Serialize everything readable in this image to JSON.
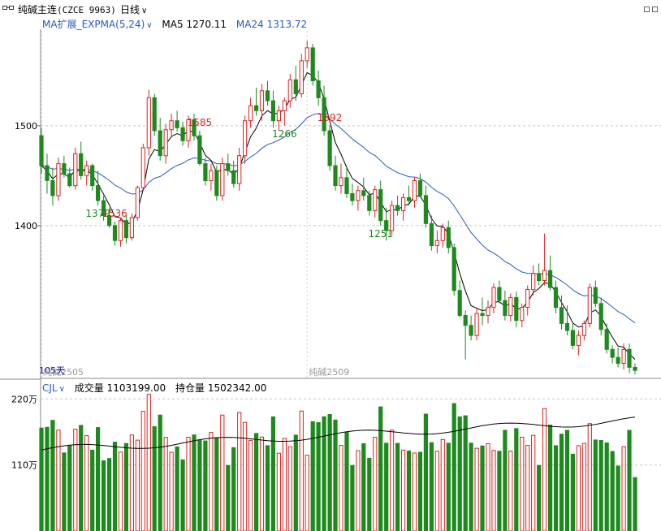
{
  "header": {
    "instrument": "纯碱主连",
    "code": "(CZCE 9963)",
    "period": "日线"
  },
  "main_legend": {
    "indicator": "MA扩展_EXPMA(5,24)",
    "ma5_label": "MA5",
    "ma5_value": "1270.11",
    "ma24_label": "MA24",
    "ma24_value": "1313.72"
  },
  "volume_legend": {
    "indicator": "CJL",
    "volume_label": "成交量",
    "volume_value": "1103199.00",
    "oi_label": "持仓量",
    "oi_value": "1502342.00"
  },
  "colors": {
    "up": "#dd2222",
    "down": "#1d8a1d",
    "ma5": "#000000",
    "ma24": "#2a57c7",
    "grid": "#c8c8c8",
    "open_interest": "#000000"
  },
  "chart_data": [
    {
      "type": "candlestick",
      "title": "纯碱主连(CZCE 9963)",
      "y_ticks": [
        "1500",
        "1400"
      ],
      "ylim": [
        1247,
        1595
      ],
      "annotations": [
        {
          "label": "1536",
          "bar": 13,
          "kind": "high"
        },
        {
          "label": "1585",
          "bar": 28,
          "kind": "high"
        },
        {
          "label": "1392",
          "bar": 51,
          "kind": "high"
        },
        {
          "label": "1379",
          "bar": 10,
          "kind": "low"
        },
        {
          "label": "1266",
          "bar": 43,
          "kind": "low"
        },
        {
          "label": "1251",
          "bar": 60,
          "kind": "low"
        }
      ],
      "contract_markers": [
        {
          "label": "纯碱2505",
          "bar": 0
        },
        {
          "label": "纯碱2509",
          "bar": 47
        }
      ],
      "bottom_label": "105天",
      "ohlc": [
        [
          1490,
          1498,
          1452,
          1460
        ],
        [
          1460,
          1472,
          1432,
          1445
        ],
        [
          1445,
          1458,
          1420,
          1430
        ],
        [
          1430,
          1468,
          1425,
          1462
        ],
        [
          1462,
          1470,
          1448,
          1452
        ],
        [
          1452,
          1458,
          1438,
          1440
        ],
        [
          1440,
          1478,
          1436,
          1472
        ],
        [
          1472,
          1484,
          1446,
          1450
        ],
        [
          1450,
          1465,
          1440,
          1460
        ],
        [
          1460,
          1462,
          1435,
          1440
        ],
        [
          1440,
          1455,
          1420,
          1425
        ],
        [
          1425,
          1430,
          1405,
          1410
        ],
        [
          1410,
          1418,
          1398,
          1400
        ],
        [
          1400,
          1404,
          1380,
          1385
        ],
        [
          1385,
          1408,
          1379,
          1405
        ],
        [
          1405,
          1410,
          1382,
          1388
        ],
        [
          1388,
          1412,
          1385,
          1408
        ],
        [
          1408,
          1440,
          1405,
          1438
        ],
        [
          1438,
          1482,
          1435,
          1478
        ],
        [
          1478,
          1536,
          1470,
          1528
        ],
        [
          1528,
          1532,
          1490,
          1495
        ],
        [
          1495,
          1508,
          1465,
          1470
        ],
        [
          1470,
          1502,
          1462,
          1496
        ],
        [
          1496,
          1512,
          1488,
          1505
        ],
        [
          1505,
          1515,
          1494,
          1498
        ],
        [
          1498,
          1504,
          1480,
          1485
        ],
        [
          1485,
          1510,
          1478,
          1506
        ],
        [
          1506,
          1512,
          1485,
          1490
        ],
        [
          1490,
          1495,
          1460,
          1462
        ],
        [
          1462,
          1468,
          1440,
          1445
        ],
        [
          1445,
          1462,
          1435,
          1455
        ],
        [
          1455,
          1460,
          1425,
          1430
        ],
        [
          1430,
          1468,
          1425,
          1462
        ],
        [
          1462,
          1472,
          1450,
          1455
        ],
        [
          1455,
          1465,
          1438,
          1442
        ],
        [
          1442,
          1478,
          1435,
          1470
        ],
        [
          1470,
          1510,
          1462,
          1505
        ],
        [
          1505,
          1528,
          1498,
          1520
        ],
        [
          1520,
          1538,
          1510,
          1515
        ],
        [
          1515,
          1542,
          1505,
          1535
        ],
        [
          1535,
          1545,
          1520,
          1525
        ],
        [
          1525,
          1535,
          1498,
          1505
        ],
        [
          1505,
          1520,
          1495,
          1515
        ],
        [
          1515,
          1528,
          1500,
          1525
        ],
        [
          1525,
          1552,
          1518,
          1546
        ],
        [
          1546,
          1560,
          1525,
          1532
        ],
        [
          1532,
          1572,
          1528,
          1565
        ],
        [
          1565,
          1585,
          1558,
          1578
        ],
        [
          1578,
          1582,
          1540,
          1545
        ],
        [
          1545,
          1555,
          1520,
          1528
        ],
        [
          1528,
          1540,
          1490,
          1495
        ],
        [
          1495,
          1500,
          1455,
          1460
        ],
        [
          1460,
          1470,
          1435,
          1440
        ],
        [
          1440,
          1462,
          1432,
          1448
        ],
        [
          1448,
          1460,
          1428,
          1432
        ],
        [
          1432,
          1442,
          1420,
          1425
        ],
        [
          1425,
          1440,
          1415,
          1435
        ],
        [
          1435,
          1448,
          1425,
          1430
        ],
        [
          1430,
          1435,
          1410,
          1415
        ],
        [
          1415,
          1440,
          1408,
          1436
        ],
        [
          1436,
          1445,
          1400,
          1405
        ],
        [
          1405,
          1418,
          1385,
          1395
        ],
        [
          1395,
          1425,
          1390,
          1420
        ],
        [
          1420,
          1430,
          1410,
          1415
        ],
        [
          1415,
          1432,
          1405,
          1428
        ],
        [
          1428,
          1440,
          1420,
          1425
        ],
        [
          1425,
          1448,
          1418,
          1445
        ],
        [
          1445,
          1452,
          1428,
          1430
        ],
        [
          1430,
          1440,
          1398,
          1402
        ],
        [
          1402,
          1410,
          1375,
          1380
        ],
        [
          1380,
          1395,
          1372,
          1385
        ],
        [
          1385,
          1402,
          1378,
          1398
        ],
        [
          1398,
          1405,
          1372,
          1378
        ],
        [
          1378,
          1382,
          1330,
          1335
        ],
        [
          1335,
          1345,
          1308,
          1310
        ],
        [
          1310,
          1315,
          1266,
          1300
        ],
        [
          1300,
          1310,
          1285,
          1290
        ],
        [
          1290,
          1318,
          1285,
          1312
        ],
        [
          1312,
          1328,
          1300,
          1310
        ],
        [
          1310,
          1325,
          1302,
          1318
        ],
        [
          1318,
          1342,
          1312,
          1338
        ],
        [
          1338,
          1345,
          1322,
          1325
        ],
        [
          1325,
          1335,
          1305,
          1310
        ],
        [
          1310,
          1332,
          1304,
          1328
        ],
        [
          1328,
          1334,
          1298,
          1305
        ],
        [
          1305,
          1322,
          1298,
          1318
        ],
        [
          1318,
          1340,
          1310,
          1336
        ],
        [
          1336,
          1360,
          1330,
          1352
        ],
        [
          1352,
          1362,
          1340,
          1345
        ],
        [
          1345,
          1392,
          1340,
          1355
        ],
        [
          1355,
          1370,
          1335,
          1338
        ],
        [
          1338,
          1345,
          1312,
          1318
        ],
        [
          1318,
          1330,
          1296,
          1302
        ],
        [
          1302,
          1320,
          1290,
          1295
        ],
        [
          1295,
          1302,
          1276,
          1280
        ],
        [
          1280,
          1295,
          1270,
          1290
        ],
        [
          1290,
          1305,
          1285,
          1302
        ],
        [
          1302,
          1342,
          1298,
          1338
        ],
        [
          1338,
          1345,
          1318,
          1322
        ],
        [
          1322,
          1328,
          1290,
          1296
        ],
        [
          1296,
          1302,
          1272,
          1276
        ],
        [
          1276,
          1280,
          1262,
          1268
        ],
        [
          1268,
          1278,
          1258,
          1262
        ],
        [
          1262,
          1282,
          1256,
          1276
        ],
        [
          1276,
          1282,
          1252,
          1258
        ],
        [
          1258,
          1262,
          1251,
          1255
        ]
      ]
    },
    {
      "type": "bar",
      "title": "CJL",
      "y_ticks": [
        "220万",
        "110万"
      ],
      "ylim": [
        0,
        2300000
      ],
      "volume_series": {
        "name": "成交量"
      },
      "open_interest_series": {
        "name": "持仓量"
      }
    }
  ]
}
